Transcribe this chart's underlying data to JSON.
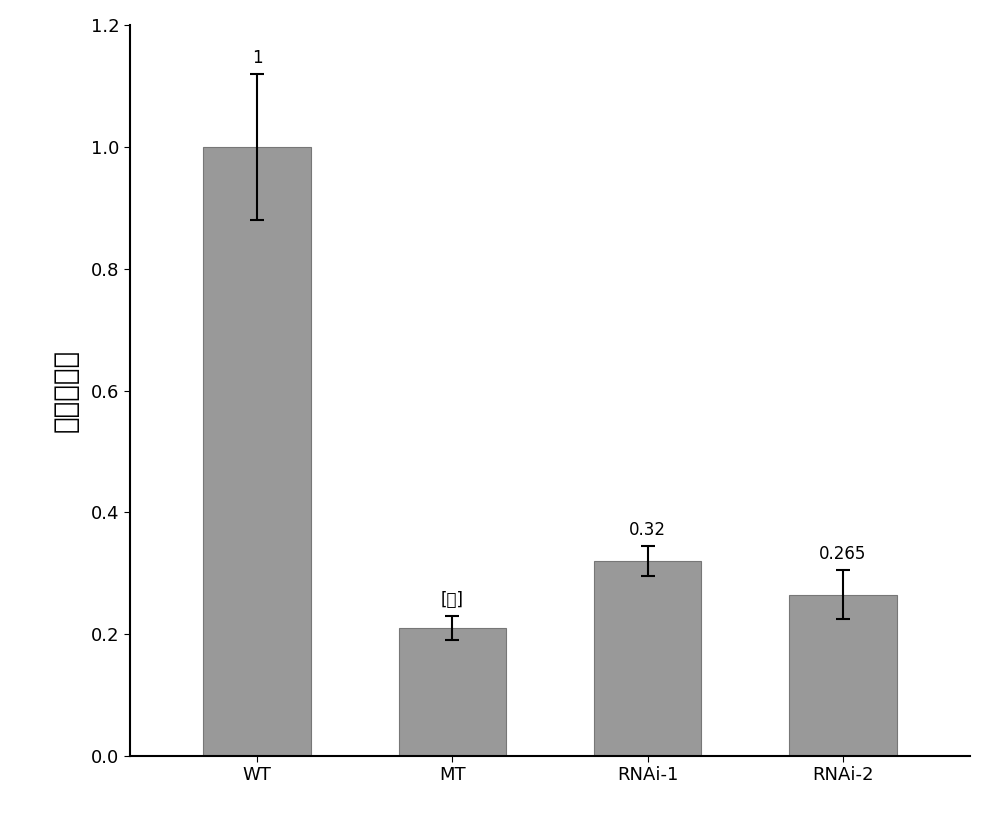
{
  "categories": [
    "WT",
    "MT",
    "RNAi-1",
    "RNAi-2"
  ],
  "values": [
    1.0,
    0.21,
    0.32,
    0.265
  ],
  "errors": [
    0.12,
    0.02,
    0.025,
    0.04
  ],
  "labels": [
    "1",
    "[值]",
    "0.32",
    "0.265"
  ],
  "bar_color": "#999999",
  "bar_edgecolor": "#777777",
  "error_color": "black",
  "ylabel": "相对表达量",
  "ylim": [
    0,
    1.2
  ],
  "yticks": [
    0,
    0.2,
    0.4,
    0.6,
    0.8,
    1.0,
    1.2
  ],
  "background_color": "#ffffff",
  "bar_width": 0.55,
  "label_fontsize": 12,
  "tick_fontsize": 13,
  "ylabel_fontsize": 20
}
